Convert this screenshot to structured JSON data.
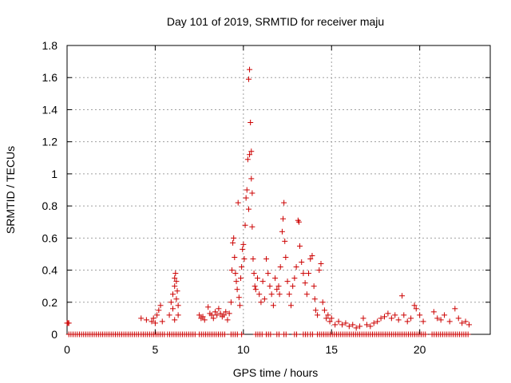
{
  "chart_data": {
    "type": "scatter",
    "title": "Day 101 of 2019, SRMTID for receiver maju",
    "xlabel": "GPS time / hours",
    "ylabel": "SRMTID / TECUs",
    "xlim": [
      0,
      24
    ],
    "ylim": [
      0,
      1.8
    ],
    "xticks": [
      0,
      5,
      10,
      15,
      20
    ],
    "xtick_labels": [
      "0",
      "5",
      "10",
      "15",
      "20"
    ],
    "yticks": [
      0,
      0.2,
      0.4,
      0.6,
      0.8,
      1.0,
      1.2,
      1.4,
      1.6,
      1.8
    ],
    "ytick_labels": [
      "0",
      "0.2",
      "0.4",
      "0.6",
      "0.8",
      "1",
      "1.2",
      "1.4",
      "1.6",
      "1.8"
    ],
    "grid": true,
    "marker": "+",
    "color": "#cc0000",
    "series": [
      {
        "name": "SRMTID",
        "points": [
          [
            0.0,
            0.07
          ],
          [
            0.05,
            0.07
          ],
          [
            0.1,
            0.07
          ],
          [
            4.2,
            0.1
          ],
          [
            4.5,
            0.09
          ],
          [
            4.8,
            0.08
          ],
          [
            4.9,
            0.1
          ],
          [
            5.0,
            0.07
          ],
          [
            5.1,
            0.12
          ],
          [
            5.2,
            0.15
          ],
          [
            5.3,
            0.18
          ],
          [
            5.4,
            0.08
          ],
          [
            5.8,
            0.12
          ],
          [
            5.9,
            0.2
          ],
          [
            6.0,
            0.16
          ],
          [
            6.0,
            0.25
          ],
          [
            6.1,
            0.3
          ],
          [
            6.1,
            0.35
          ],
          [
            6.15,
            0.38
          ],
          [
            6.2,
            0.33
          ],
          [
            6.25,
            0.27
          ],
          [
            6.2,
            0.22
          ],
          [
            6.3,
            0.18
          ],
          [
            6.3,
            0.12
          ],
          [
            6.1,
            0.09
          ],
          [
            7.5,
            0.12
          ],
          [
            7.6,
            0.1
          ],
          [
            7.7,
            0.11
          ],
          [
            7.8,
            0.09
          ],
          [
            8.0,
            0.17
          ],
          [
            8.1,
            0.13
          ],
          [
            8.2,
            0.12
          ],
          [
            8.3,
            0.1
          ],
          [
            8.4,
            0.14
          ],
          [
            8.5,
            0.12
          ],
          [
            8.6,
            0.16
          ],
          [
            8.7,
            0.13
          ],
          [
            8.8,
            0.11
          ],
          [
            8.9,
            0.12
          ],
          [
            9.0,
            0.14
          ],
          [
            9.1,
            0.09
          ],
          [
            9.2,
            0.13
          ],
          [
            9.3,
            0.2
          ],
          [
            9.35,
            0.4
          ],
          [
            9.4,
            0.57
          ],
          [
            9.45,
            0.6
          ],
          [
            9.5,
            0.48
          ],
          [
            9.55,
            0.38
          ],
          [
            9.6,
            0.33
          ],
          [
            9.65,
            0.28
          ],
          [
            9.7,
            0.82
          ],
          [
            9.75,
            0.23
          ],
          [
            9.8,
            0.18
          ],
          [
            9.85,
            0.35
          ],
          [
            9.9,
            0.42
          ],
          [
            9.95,
            0.53
          ],
          [
            10.0,
            0.56
          ],
          [
            10.05,
            0.47
          ],
          [
            10.1,
            0.68
          ],
          [
            10.15,
            0.85
          ],
          [
            10.2,
            0.9
          ],
          [
            10.25,
            1.09
          ],
          [
            10.3,
            0.78
          ],
          [
            10.3,
            1.59
          ],
          [
            10.35,
            1.65
          ],
          [
            10.35,
            1.12
          ],
          [
            10.4,
            1.32
          ],
          [
            10.45,
            1.14
          ],
          [
            10.45,
            0.97
          ],
          [
            10.5,
            0.88
          ],
          [
            10.5,
            0.67
          ],
          [
            10.55,
            0.47
          ],
          [
            10.6,
            0.38
          ],
          [
            10.65,
            0.3
          ],
          [
            10.7,
            0.28
          ],
          [
            10.8,
            0.35
          ],
          [
            10.9,
            0.25
          ],
          [
            11.0,
            0.2
          ],
          [
            11.1,
            0.33
          ],
          [
            11.2,
            0.22
          ],
          [
            11.3,
            0.47
          ],
          [
            11.4,
            0.38
          ],
          [
            11.5,
            0.3
          ],
          [
            11.6,
            0.25
          ],
          [
            11.7,
            0.18
          ],
          [
            11.8,
            0.35
          ],
          [
            11.9,
            0.28
          ],
          [
            12.0,
            0.3
          ],
          [
            12.05,
            0.25
          ],
          [
            12.1,
            0.42
          ],
          [
            12.2,
            0.64
          ],
          [
            12.25,
            0.72
          ],
          [
            12.3,
            0.82
          ],
          [
            12.35,
            0.58
          ],
          [
            12.4,
            0.48
          ],
          [
            12.5,
            0.33
          ],
          [
            12.6,
            0.25
          ],
          [
            12.7,
            0.18
          ],
          [
            12.8,
            0.3
          ],
          [
            12.9,
            0.35
          ],
          [
            13.0,
            0.42
          ],
          [
            13.1,
            0.71
          ],
          [
            13.15,
            0.7
          ],
          [
            13.2,
            0.55
          ],
          [
            13.3,
            0.45
          ],
          [
            13.4,
            0.38
          ],
          [
            13.5,
            0.32
          ],
          [
            13.6,
            0.25
          ],
          [
            13.7,
            0.38
          ],
          [
            13.8,
            0.47
          ],
          [
            13.9,
            0.49
          ],
          [
            14.0,
            0.3
          ],
          [
            14.05,
            0.22
          ],
          [
            14.1,
            0.15
          ],
          [
            14.2,
            0.12
          ],
          [
            14.3,
            0.4
          ],
          [
            14.4,
            0.44
          ],
          [
            14.5,
            0.2
          ],
          [
            14.6,
            0.15
          ],
          [
            14.7,
            0.1
          ],
          [
            14.8,
            0.12
          ],
          [
            14.9,
            0.08
          ],
          [
            15.0,
            0.1
          ],
          [
            15.2,
            0.06
          ],
          [
            15.4,
            0.08
          ],
          [
            15.6,
            0.06
          ],
          [
            15.8,
            0.07
          ],
          [
            16.0,
            0.05
          ],
          [
            16.2,
            0.06
          ],
          [
            16.4,
            0.04
          ],
          [
            16.6,
            0.05
          ],
          [
            16.8,
            0.1
          ],
          [
            17.0,
            0.06
          ],
          [
            17.2,
            0.05
          ],
          [
            17.4,
            0.07
          ],
          [
            17.6,
            0.08
          ],
          [
            17.8,
            0.1
          ],
          [
            18.0,
            0.11
          ],
          [
            18.2,
            0.13
          ],
          [
            18.4,
            0.1
          ],
          [
            18.6,
            0.12
          ],
          [
            18.8,
            0.09
          ],
          [
            19.0,
            0.24
          ],
          [
            19.1,
            0.12
          ],
          [
            19.3,
            0.08
          ],
          [
            19.5,
            0.1
          ],
          [
            19.7,
            0.18
          ],
          [
            19.8,
            0.16
          ],
          [
            20.0,
            0.12
          ],
          [
            20.2,
            0.08
          ],
          [
            20.8,
            0.14
          ],
          [
            21.0,
            0.1
          ],
          [
            21.2,
            0.09
          ],
          [
            21.4,
            0.12
          ],
          [
            21.7,
            0.08
          ],
          [
            22.0,
            0.16
          ],
          [
            22.2,
            0.1
          ],
          [
            22.4,
            0.07
          ],
          [
            22.6,
            0.08
          ],
          [
            22.8,
            0.06
          ]
        ],
        "zero_ranges": [
          [
            0.1,
            4.1
          ],
          [
            4.2,
            5.6
          ],
          [
            5.7,
            7.3
          ],
          [
            7.5,
            9.0
          ],
          [
            9.3,
            9.7
          ],
          [
            9.9,
            10.0
          ],
          [
            10.7,
            11.1
          ],
          [
            11.3,
            11.6
          ],
          [
            11.9,
            12.1
          ],
          [
            12.3,
            12.5
          ],
          [
            12.9,
            13.1
          ],
          [
            13.4,
            13.7
          ],
          [
            13.8,
            14.0
          ],
          [
            14.2,
            20.4
          ],
          [
            20.7,
            22.8
          ]
        ]
      }
    ]
  }
}
